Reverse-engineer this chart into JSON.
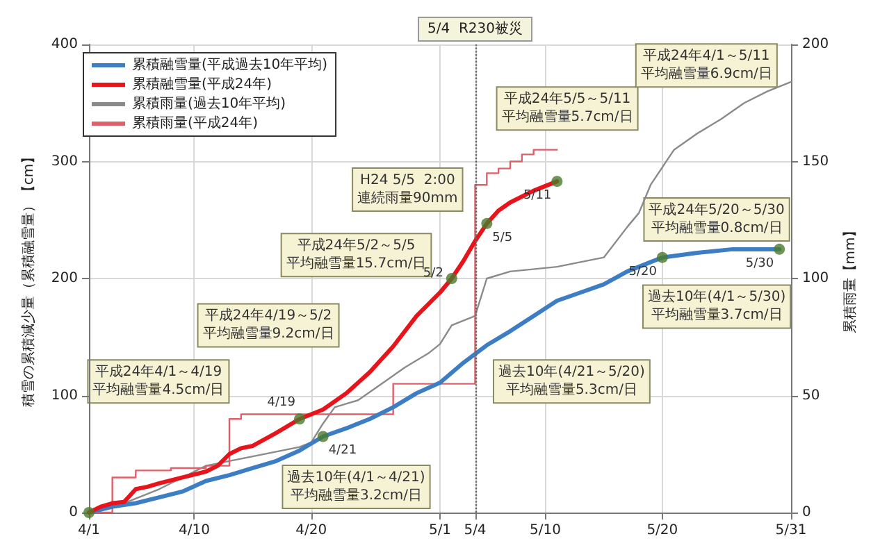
{
  "chart_data": {
    "type": "line",
    "ylabel": "積雪の累積減少量（累積融雪量）【cm】",
    "y2label": "累積雨量【mm】",
    "xlim": [
      "--04-01",
      "--05-31"
    ],
    "xticks": [
      {
        "value": "--04-01",
        "label": "4/1"
      },
      {
        "value": "--04-10",
        "label": "4/10"
      },
      {
        "value": "--04-20",
        "label": "4/20"
      },
      {
        "value": "--05-01",
        "label": "5/1"
      },
      {
        "value": "--05-04",
        "label": "5/4"
      },
      {
        "value": "--05-10",
        "label": "5/10"
      },
      {
        "value": "--05-20",
        "label": "5/20"
      },
      {
        "value": "--05-31",
        "label": "5/31"
      }
    ],
    "ylim": [
      0,
      400
    ],
    "yticks": [
      0,
      100,
      200,
      300,
      400
    ],
    "y2lim": [
      0,
      200
    ],
    "y2ticks": [
      0,
      50,
      100,
      150,
      200
    ],
    "grid": true,
    "legend": "top left",
    "line_style": "solid",
    "series": [
      {
        "name": "累積融雪量(平成過去10年平均)",
        "color": "#3c7dc4",
        "x": [
          "--04-01",
          "--04-03",
          "--04-05",
          "--04-07",
          "--04-09",
          "--04-11",
          "--04-13",
          "--04-15",
          "--04-17",
          "--04-19",
          "--04-21",
          "--04-23",
          "--04-25",
          "--04-27",
          "--04-29",
          "--05-01",
          "--05-03",
          "--05-05",
          "--05-07",
          "--05-09",
          "--05-11",
          "--05-13",
          "--05-15",
          "--05-17",
          "--05-19",
          "--05-20",
          "--05-23",
          "--05-26",
          "--05-30"
        ],
        "values": [
          0,
          5,
          8,
          13,
          18,
          27,
          32,
          38,
          44,
          53,
          65,
          72,
          80,
          90,
          102,
          111,
          128,
          143,
          155,
          168,
          181,
          188,
          195,
          206,
          214,
          218,
          222,
          225,
          225
        ]
      },
      {
        "name": "累積融雪量(平成24年)",
        "color": "#e8141b",
        "x": [
          "--04-01",
          "--04-02",
          "--04-03",
          "--04-04",
          "--04-05",
          "--04-06",
          "--04-07",
          "--04-09",
          "--04-11",
          "--04-12",
          "--04-13",
          "--04-14",
          "--04-15",
          "--04-17",
          "--04-19",
          "--04-21",
          "--04-23",
          "--04-25",
          "--04-27",
          "--04-29",
          "--05-01",
          "--05-02",
          "--05-03",
          "--05-04",
          "--05-05",
          "--05-06",
          "--05-07",
          "--05-09",
          "--05-11"
        ],
        "values": [
          0,
          5,
          8,
          9,
          20,
          22,
          25,
          30,
          35,
          40,
          50,
          55,
          57,
          68,
          80,
          88,
          102,
          120,
          142,
          168,
          188,
          200,
          215,
          232,
          247,
          258,
          265,
          275,
          283
        ]
      },
      {
        "name": "累積雨量(過去10年平均)",
        "color": "#8a8a8a",
        "axis": "y2",
        "x": [
          "--04-01",
          "--04-03",
          "--04-05",
          "--04-07",
          "--04-09",
          "--04-11",
          "--04-13",
          "--04-15",
          "--04-17",
          "--04-19",
          "--04-20",
          "--04-21",
          "--04-22",
          "--04-24",
          "--04-26",
          "--04-28",
          "--04-30",
          "--05-01",
          "--05-02",
          "--05-04",
          "--05-05",
          "--05-07",
          "--05-11",
          "--05-15",
          "--05-17",
          "--05-18",
          "--05-19",
          "--05-21",
          "--05-23",
          "--05-25",
          "--05-27",
          "--05-29",
          "--05-31"
        ],
        "values": [
          0,
          2,
          6,
          10,
          15,
          20,
          22,
          24,
          26,
          28,
          30,
          38,
          45,
          48,
          55,
          62,
          68,
          72,
          80,
          84,
          100,
          103,
          105,
          109,
          122,
          128,
          140,
          155,
          162,
          168,
          175,
          180,
          184
        ]
      },
      {
        "name": "累積雨量(平成24年)",
        "type": "step",
        "color": "#e0606a",
        "axis": "y2",
        "x": [
          "--04-01",
          "--04-03",
          "--04-05",
          "--04-08",
          "--04-11",
          "--04-13",
          "--04-14",
          "--04-27",
          "--05-04",
          "--05-05",
          "--05-06",
          "--05-07",
          "--05-08",
          "--05-09",
          "--05-11"
        ],
        "values": [
          0,
          15,
          18,
          19,
          20,
          40,
          42,
          55,
          140,
          145,
          147,
          150,
          153,
          155,
          155
        ]
      },
      {
        "type": "scatter",
        "marker": "circle",
        "color": "#4a7a2a",
        "x": [
          "--04-01",
          "--04-19",
          "--04-21",
          "--05-02",
          "--05-05",
          "--05-11",
          "--05-20",
          "--05-30"
        ],
        "values": [
          0,
          80,
          65,
          200,
          247,
          283,
          218,
          225
        ]
      }
    ],
    "ref_lines": [
      {
        "axis": "x",
        "value": "--05-04",
        "label": "5/4  R230被災",
        "line_style": "dotted",
        "color": "#666666"
      }
    ],
    "annotations": [
      "H24 5/5  2:00\n連続雨量90mm",
      "平成24年5/5～5/11\n平均融雪量5.7cm/日",
      "平成24年4/1～5/11\n平均融雪量6.9cm/日",
      "平成24年5/2～5/5\n平均融雪量15.7cm/日",
      "平成24年4/19～5/2\n平均融雪量9.2cm/日",
      "平成24年4/1～4/19\n平均融雪量4.5cm/日",
      "過去10年(4/1～4/21)\n平均融雪量3.2cm/日",
      "過去10年(4/21～5/20)\n平均融雪量5.3cm/日",
      "平成24年5/20～5/30\n平均融雪量0.8cm/日",
      "過去10年(4/1～5/30)\n平均融雪量3.7cm/日",
      {
        "text": "4/19",
        "x": "--04-19",
        "y": 80
      },
      {
        "text": "4/21",
        "x": "--04-21",
        "y": 65
      },
      {
        "text": "5/2",
        "x": "--05-02",
        "y": 200
      },
      {
        "text": "5/5",
        "x": "--05-05",
        "y": 247
      },
      {
        "text": "5/11",
        "x": "--05-11",
        "y": 283
      },
      {
        "text": "5/20",
        "x": "--05-20",
        "y": 218
      },
      {
        "text": "5/30",
        "x": "--05-30",
        "y": 225
      }
    ]
  }
}
